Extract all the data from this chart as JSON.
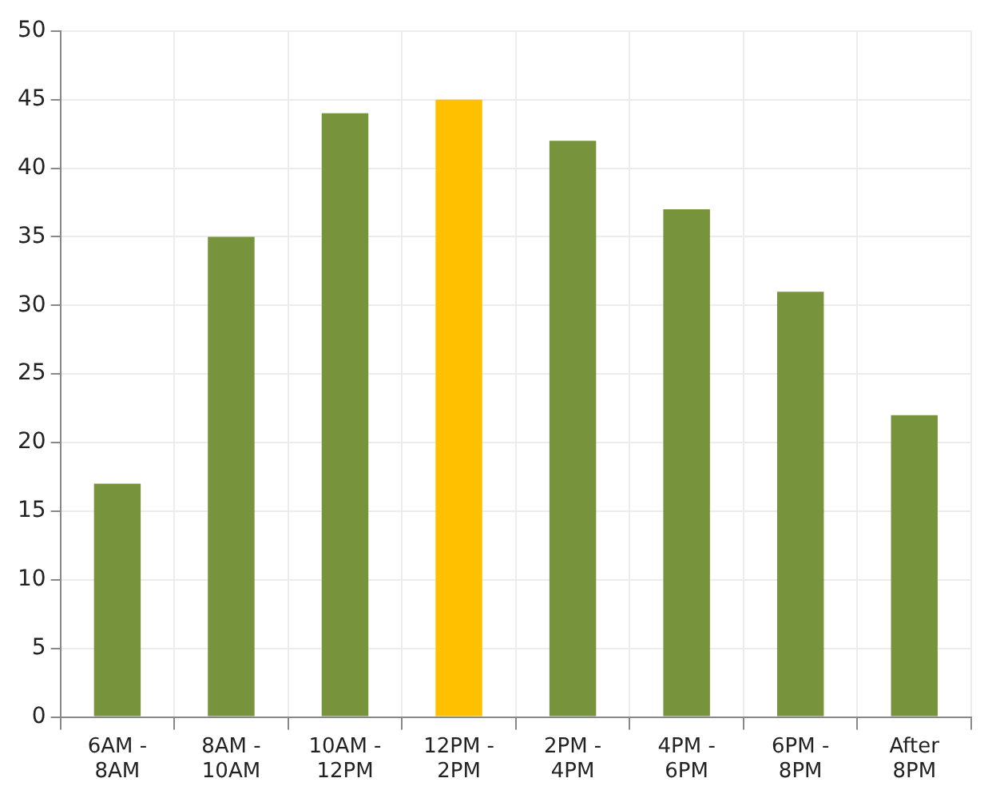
{
  "chart_data": {
    "type": "bar",
    "categories": [
      "6AM - 8AM",
      "8AM - 10AM",
      "10AM - 12PM",
      "12PM - 2PM",
      "2PM - 4PM",
      "4PM - 6PM",
      "6PM - 8PM",
      "After 8PM"
    ],
    "values": [
      17,
      35,
      44,
      45,
      42,
      37,
      31,
      22
    ],
    "colors": [
      "#77933c",
      "#77933c",
      "#77933c",
      "#ffc000",
      "#77933c",
      "#77933c",
      "#77933c",
      "#77933c"
    ],
    "ylim": [
      0,
      50
    ],
    "yticks": [
      0,
      5,
      10,
      15,
      20,
      25,
      30,
      35,
      40,
      45,
      50
    ],
    "grid": true,
    "legend": false
  }
}
